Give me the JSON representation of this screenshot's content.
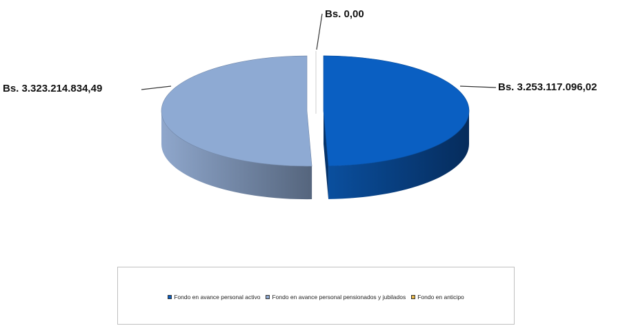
{
  "chart_data": {
    "type": "pie",
    "style": "3d-exploded",
    "title": "",
    "slices": [
      {
        "name": "Fondo en avance personal activo",
        "value": 3253117096.02,
        "label": "Bs.  3.253.117.096,02",
        "color": "#0a5fc2"
      },
      {
        "name": "Fondo en avance personal pensionados y jubilados",
        "value": 3323214834.49,
        "label": "Bs.  3.323.214.834,49",
        "color": "#8eaad3"
      },
      {
        "name": "Fondo en anticipo",
        "value": 0.0,
        "label": "Bs.  0,00",
        "color": "#e8b84a"
      }
    ],
    "legend_position": "bottom"
  }
}
